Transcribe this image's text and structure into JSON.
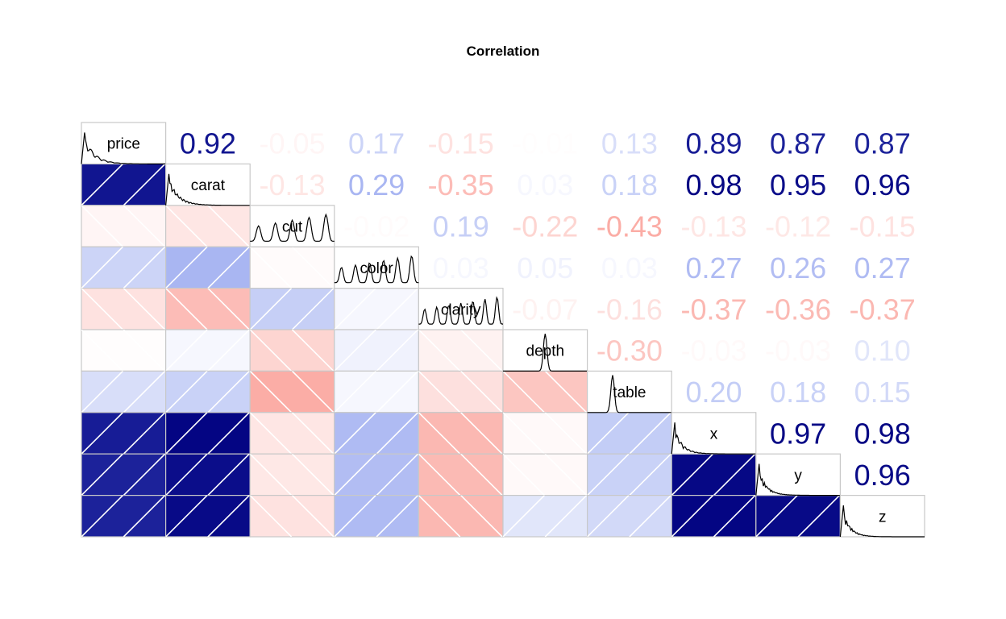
{
  "chart_data": {
    "type": "heatmap",
    "title": "Correlation",
    "variables": [
      "price",
      "carat",
      "cut",
      "color",
      "clarity",
      "depth",
      "table",
      "x",
      "y",
      "z"
    ],
    "matrix": [
      [
        1.0,
        0.92,
        -0.05,
        0.17,
        -0.15,
        -0.01,
        0.13,
        0.89,
        0.87,
        0.87
      ],
      [
        0.92,
        1.0,
        -0.13,
        0.29,
        -0.35,
        0.03,
        0.18,
        0.98,
        0.95,
        0.96
      ],
      [
        -0.05,
        -0.13,
        1.0,
        -0.02,
        0.19,
        -0.22,
        -0.43,
        -0.13,
        -0.12,
        -0.15
      ],
      [
        0.17,
        0.29,
        -0.02,
        1.0,
        0.03,
        0.05,
        0.03,
        0.27,
        0.26,
        0.27
      ],
      [
        -0.15,
        -0.35,
        0.19,
        0.03,
        1.0,
        -0.07,
        -0.16,
        -0.37,
        -0.36,
        -0.37
      ],
      [
        -0.01,
        0.03,
        -0.22,
        0.05,
        -0.07,
        1.0,
        -0.3,
        -0.03,
        -0.03,
        0.1
      ],
      [
        0.13,
        0.18,
        -0.43,
        0.03,
        -0.16,
        -0.3,
        1.0,
        0.2,
        0.18,
        0.15
      ],
      [
        0.89,
        0.98,
        -0.13,
        0.27,
        -0.37,
        -0.03,
        0.2,
        1.0,
        0.97,
        0.98
      ],
      [
        0.87,
        0.95,
        -0.12,
        0.26,
        -0.36,
        -0.03,
        0.18,
        0.97,
        1.0,
        0.96
      ],
      [
        0.87,
        0.96,
        -0.15,
        0.27,
        -0.37,
        0.1,
        0.15,
        0.98,
        0.96,
        1.0
      ]
    ],
    "upper_panel": "correlation coefficient text",
    "lower_panel": "shaded tiles with hatching",
    "diagonal_panel": "density curve with variable name",
    "color_scale": {
      "negative": "#f54030",
      "zero": "#ffffff",
      "positive": "#00007f"
    }
  }
}
